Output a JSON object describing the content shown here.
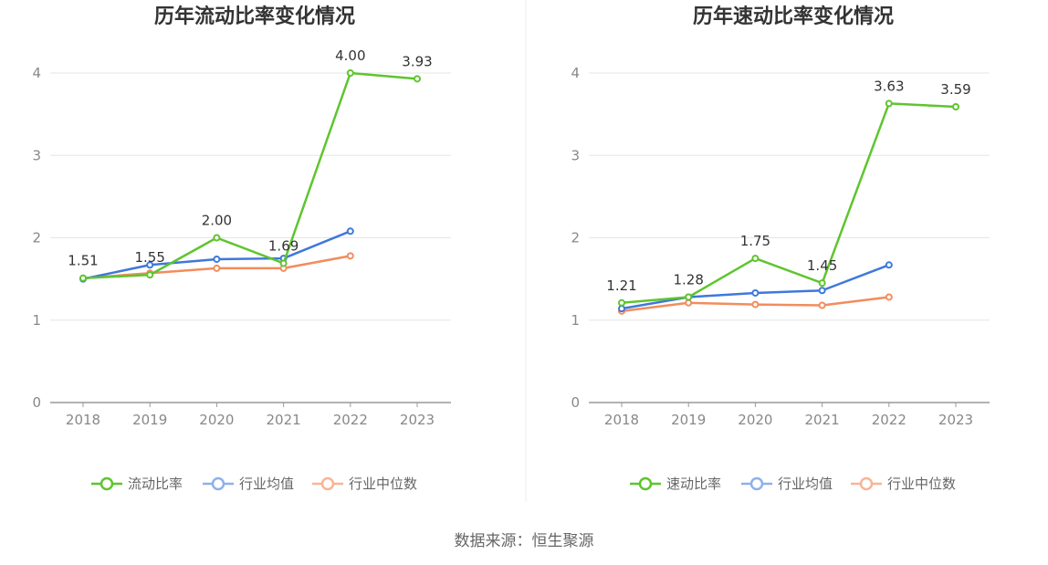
{
  "source": "数据来源：恒生聚源",
  "colors": {
    "primary": "#5ec52e",
    "average": "#3e78db",
    "median": "#f28c5d",
    "grid": "#e6e6e6",
    "axis": "#999999",
    "divider": "#eeeeee"
  },
  "chart_data": [
    {
      "type": "line",
      "title": "历年流动比率变化情况",
      "categories": [
        "2018",
        "2019",
        "2020",
        "2021",
        "2022",
        "2023"
      ],
      "ylim": [
        0,
        4
      ],
      "yticks": [
        "0",
        "1",
        "2",
        "3",
        "4"
      ],
      "legend_position": "bottom",
      "series": [
        {
          "name": "流动比率",
          "values": [
            1.51,
            1.55,
            2.0,
            1.69,
            4.0,
            3.93
          ],
          "labels": [
            "1.51",
            "1.55",
            "2.00",
            "1.69",
            "4.00",
            "3.93"
          ],
          "color": "#5ec52e"
        },
        {
          "name": "行业均值",
          "values": [
            1.5,
            1.67,
            1.74,
            1.75,
            2.08,
            null
          ],
          "color": "#3e78db"
        },
        {
          "name": "行业中位数",
          "values": [
            1.51,
            1.57,
            1.63,
            1.63,
            1.78,
            null
          ],
          "color": "#f28c5d"
        }
      ]
    },
    {
      "type": "line",
      "title": "历年速动比率变化情况",
      "categories": [
        "2018",
        "2019",
        "2020",
        "2021",
        "2022",
        "2023"
      ],
      "ylim": [
        0,
        4
      ],
      "yticks": [
        "0",
        "1",
        "2",
        "3",
        "4"
      ],
      "legend_position": "bottom",
      "series": [
        {
          "name": "速动比率",
          "values": [
            1.21,
            1.28,
            1.75,
            1.45,
            3.63,
            3.59
          ],
          "labels": [
            "1.21",
            "1.28",
            "1.75",
            "1.45",
            "3.63",
            "3.59"
          ],
          "color": "#5ec52e"
        },
        {
          "name": "行业均值",
          "values": [
            1.14,
            1.28,
            1.33,
            1.36,
            1.67,
            null
          ],
          "color": "#3e78db"
        },
        {
          "name": "行业中位数",
          "values": [
            1.11,
            1.21,
            1.19,
            1.18,
            1.28,
            null
          ],
          "color": "#f28c5d"
        }
      ]
    }
  ]
}
